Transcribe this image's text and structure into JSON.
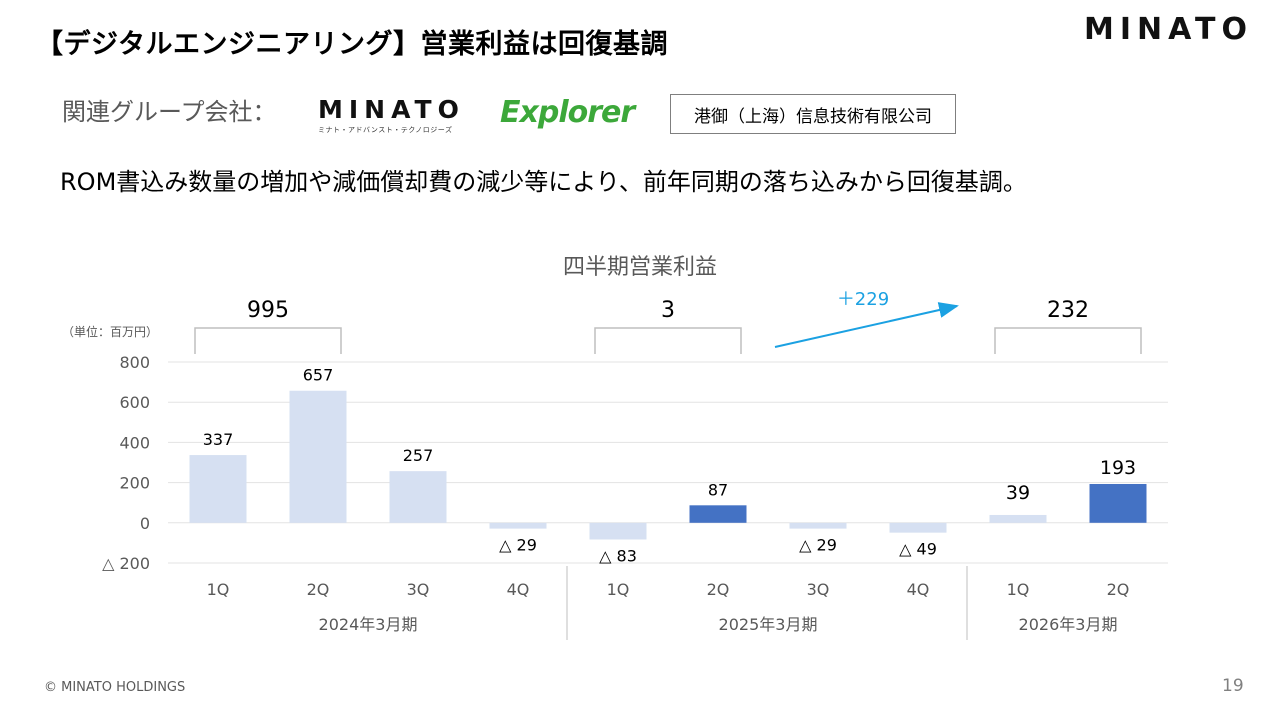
{
  "title": "【デジタルエンジニアリング】営業利益は回復基調",
  "brand": "MINATO",
  "group": {
    "label": "関連グループ会社：",
    "logo_minato": "MINATO",
    "logo_minato_sub": "ミナト・アドバンスト・テクノロジーズ",
    "logo_explorer": "Explorer",
    "company_box": "港御（上海）信息技術有限公司"
  },
  "summary": "ROM書込み数量の増加や減価償却費の減少等により、前年同期の落ち込みから回復基調。",
  "footer": "© MINATO HOLDINGS",
  "page_number": "19",
  "colors": {
    "past_bar": "#d6e0f2",
    "highlight_bar": "#4472c4",
    "arrow": "#1ba1e2"
  },
  "chart_data": {
    "type": "bar",
    "title": "四半期営業利益",
    "unit_label": "（単位：百万円）",
    "ylim": [
      -200,
      800
    ],
    "yticks": [
      800,
      600,
      400,
      200,
      0,
      -200
    ],
    "ytick_labels": [
      "800",
      "600",
      "400",
      "200",
      "0",
      "△ 200"
    ],
    "grid": true,
    "categories": [
      "1Q",
      "2Q",
      "3Q",
      "4Q",
      "1Q",
      "2Q",
      "3Q",
      "4Q",
      "1Q",
      "2Q"
    ],
    "values": [
      337,
      657,
      257,
      -29,
      -83,
      87,
      -29,
      -49,
      39,
      193
    ],
    "value_labels": [
      "337",
      "657",
      "257",
      "△ 29",
      "△ 83",
      "87",
      "△ 29",
      "△ 49",
      "39",
      "193"
    ],
    "highlight": [
      false,
      false,
      false,
      false,
      false,
      true,
      false,
      false,
      false,
      true
    ],
    "fiscal_years": [
      {
        "label": "2024年3月期",
        "start": 0,
        "end": 3
      },
      {
        "label": "2025年3月期",
        "start": 4,
        "end": 7
      },
      {
        "label": "2026年3月期",
        "start": 8,
        "end": 9
      }
    ],
    "brackets": [
      {
        "label": "995",
        "start": 0,
        "end": 1
      },
      {
        "label": "3",
        "start": 4,
        "end": 5
      },
      {
        "label": "232",
        "start": 8,
        "end": 9
      }
    ],
    "change_annotation": "＋229"
  }
}
